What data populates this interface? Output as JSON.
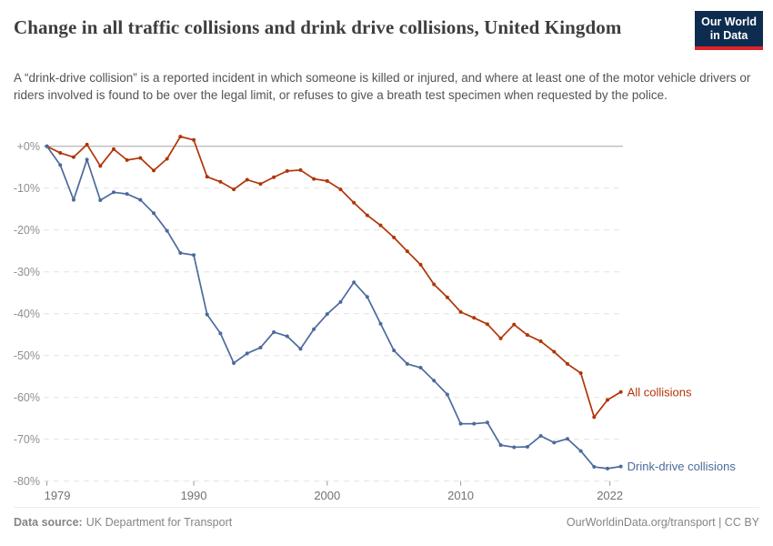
{
  "header": {
    "title": "Change in all traffic collisions and drink drive collisions, United Kingdom",
    "subtitle": "A “drink-drive collision” is a reported incident in which someone is killed or injured, and where at least one of the motor vehicle drivers or riders involved is found to be over the legal limit, or refuses to give a breath test specimen when requested by the police.",
    "logo_line1": "Our World",
    "logo_line2": "in Data",
    "logo_bg_color": "#0d2c4f",
    "logo_stripe_color": "#dc2327"
  },
  "footer": {
    "source_label": "Data source:",
    "source_value": "UK Department for Transport",
    "attribution": "OurWorldinData.org/transport | CC BY"
  },
  "chart_data": {
    "type": "line",
    "title": "Change in all traffic collisions and drink drive collisions, United Kingdom",
    "xlabel": "",
    "ylabel": "",
    "ylim": [
      -80,
      3
    ],
    "grid": "dashed horizontal gridlines, solid zero line",
    "legend_position": "end-of-line labels, right of chart",
    "x": [
      1979,
      1980,
      1981,
      1982,
      1983,
      1984,
      1985,
      1986,
      1987,
      1988,
      1989,
      1990,
      1991,
      1992,
      1993,
      1994,
      1995,
      1996,
      1997,
      1998,
      1999,
      2000,
      2001,
      2002,
      2003,
      2004,
      2005,
      2006,
      2007,
      2008,
      2009,
      2010,
      2011,
      2012,
      2013,
      2014,
      2015,
      2016,
      2017,
      2018,
      2019,
      2020,
      2021,
      2022
    ],
    "series": [
      {
        "name": "All collisions",
        "color": "#B13507",
        "values": [
          0,
          -1.6,
          -2.6,
          0.4,
          -4.7,
          -0.7,
          -3.3,
          -2.8,
          -5.8,
          -3.0,
          2.3,
          1.5,
          -7.3,
          -8.5,
          -10.3,
          -8.0,
          -9.0,
          -7.4,
          -5.9,
          -5.7,
          -7.8,
          -8.3,
          -10.3,
          -13.5,
          -16.5,
          -18.9,
          -21.8,
          -25.1,
          -28.3,
          -33.0,
          -36.1,
          -39.6,
          -41.0,
          -42.5,
          -45.9,
          -42.6,
          -45.1,
          -46.6,
          -49.1,
          -52.0,
          -54.2,
          -64.7,
          -60.6,
          -58.7
        ]
      },
      {
        "name": "Drink-drive collisions",
        "color": "#4C6A9C",
        "values": [
          0,
          -4.5,
          -12.8,
          -3.2,
          -12.9,
          -11.0,
          -11.4,
          -12.8,
          -16.0,
          -20.2,
          -25.5,
          -26.0,
          -40.2,
          -44.7,
          -51.8,
          -49.5,
          -48.1,
          -44.4,
          -45.4,
          -48.4,
          -43.7,
          -40.1,
          -37.2,
          -32.5,
          -36.0,
          -42.4,
          -48.8,
          -52.0,
          -52.9,
          -56.0,
          -59.3,
          -66.3,
          -66.3,
          -66.0,
          -71.4,
          -71.9,
          -71.8,
          -69.2,
          -70.8,
          -69.9,
          -72.8,
          -76.6,
          -77.0,
          -76.5
        ]
      }
    ],
    "x_ticks": [
      {
        "value": 1979,
        "label": "1979"
      },
      {
        "value": 1990,
        "label": "1990"
      },
      {
        "value": 2000,
        "label": "2000"
      },
      {
        "value": 2010,
        "label": "2010"
      },
      {
        "value": 2022,
        "label": "2022"
      }
    ],
    "y_ticks": [
      {
        "value": 0,
        "label": "+0%"
      },
      {
        "value": -10,
        "label": "-10%"
      },
      {
        "value": -20,
        "label": "-20%"
      },
      {
        "value": -30,
        "label": "-30%"
      },
      {
        "value": -40,
        "label": "-40%"
      },
      {
        "value": -50,
        "label": "-50%"
      },
      {
        "value": -60,
        "label": "-60%"
      },
      {
        "value": -70,
        "label": "-70%"
      },
      {
        "value": -80,
        "label": "-80%"
      }
    ]
  }
}
